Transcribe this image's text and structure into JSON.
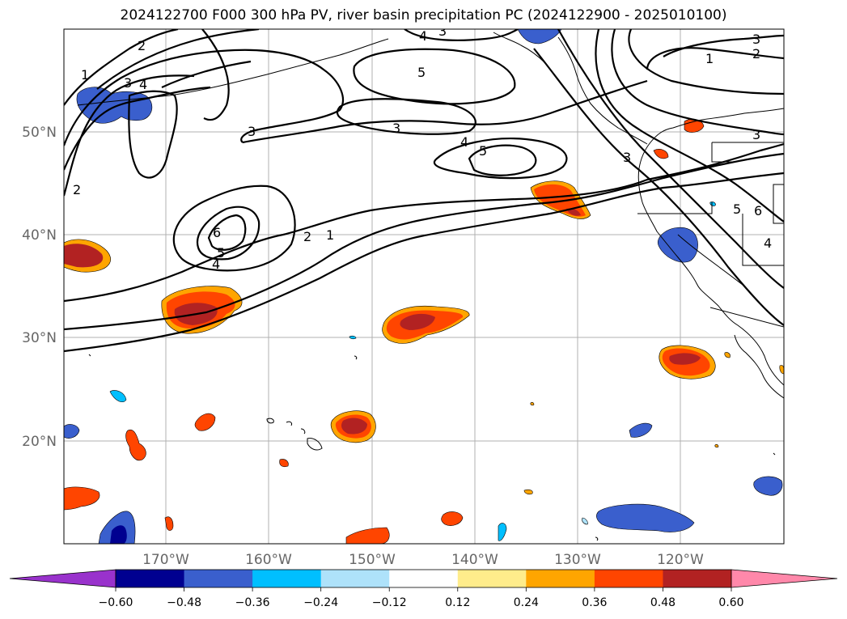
{
  "title": "2024122700 F000 300 hPa PV, river basin precipitation PC (2024122900 - 2025010100)",
  "longitude_labels": [
    "170°W",
    "160°W",
    "150°W",
    "140°W",
    "130°W",
    "120°W"
  ],
  "latitude_labels": [
    "50°N",
    "40°N",
    "30°N",
    "20°N"
  ],
  "colorbar": {
    "under_color": "#9932CC",
    "over_color": "#FF88AA",
    "colors": [
      "#000090",
      "#3A5FCD",
      "#00BFFF",
      "#AEE2FA",
      "#FFFFFF",
      "#FFEC8B",
      "#FFA500",
      "#FF4500",
      "#B22222"
    ],
    "tick_labels": [
      "−0.60",
      "−0.48",
      "−0.36",
      "−0.24",
      "−0.12",
      "0.12",
      "0.24",
      "0.36",
      "0.48",
      "0.60"
    ]
  },
  "contour_labels": [
    "1",
    "2",
    "3",
    "4",
    "5",
    "6"
  ]
}
